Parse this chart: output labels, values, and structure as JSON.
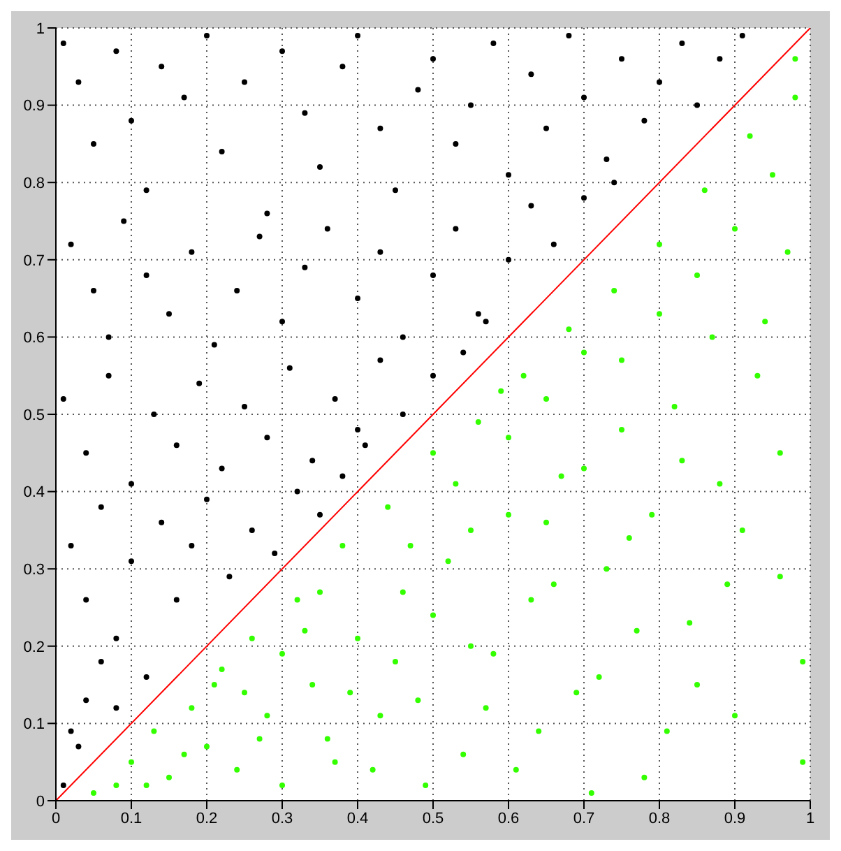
{
  "chart_data": {
    "type": "scatter",
    "xlim": [
      0,
      1
    ],
    "ylim": [
      0,
      1
    ],
    "xticks": [
      0,
      0.1,
      0.2,
      0.3,
      0.4,
      0.5,
      0.6,
      0.7,
      0.8,
      0.9,
      1
    ],
    "yticks": [
      0,
      0.1,
      0.2,
      0.3,
      0.4,
      0.5,
      0.6,
      0.7,
      0.8,
      0.9,
      1
    ],
    "grid": true,
    "marker": "circle",
    "series": [
      {
        "color": "#000000",
        "x": [
          0.01,
          0.03,
          0.05,
          0.08,
          0.1,
          0.12,
          0.14,
          0.17,
          0.2,
          0.22,
          0.25,
          0.28,
          0.3,
          0.33,
          0.35,
          0.38,
          0.4,
          0.43,
          0.45,
          0.48,
          0.5,
          0.53,
          0.55,
          0.58,
          0.6,
          0.63,
          0.65,
          0.68,
          0.7,
          0.73,
          0.75,
          0.78,
          0.8,
          0.83,
          0.85,
          0.88,
          0.91,
          0.02,
          0.05,
          0.07,
          0.09,
          0.12,
          0.15,
          0.18,
          0.21,
          0.24,
          0.27,
          0.3,
          0.33,
          0.36,
          0.4,
          0.43,
          0.46,
          0.5,
          0.53,
          0.56,
          0.6,
          0.63,
          0.66,
          0.7,
          0.74,
          0.01,
          0.04,
          0.07,
          0.1,
          0.13,
          0.16,
          0.19,
          0.22,
          0.25,
          0.28,
          0.31,
          0.34,
          0.37,
          0.4,
          0.43,
          0.46,
          0.5,
          0.54,
          0.57,
          0.02,
          0.04,
          0.06,
          0.08,
          0.1,
          0.12,
          0.14,
          0.16,
          0.18,
          0.2,
          0.23,
          0.26,
          0.29,
          0.32,
          0.35,
          0.02,
          0.04,
          0.06,
          0.03,
          0.08,
          0.01,
          0.38,
          0.41
        ],
        "values": [
          0.98,
          0.93,
          0.85,
          0.97,
          0.88,
          0.79,
          0.95,
          0.91,
          0.99,
          0.84,
          0.93,
          0.76,
          0.97,
          0.89,
          0.82,
          0.95,
          0.99,
          0.87,
          0.79,
          0.92,
          0.96,
          0.85,
          0.9,
          0.98,
          0.81,
          0.94,
          0.87,
          0.99,
          0.91,
          0.83,
          0.96,
          0.88,
          0.93,
          0.98,
          0.9,
          0.96,
          0.99,
          0.72,
          0.66,
          0.6,
          0.75,
          0.68,
          0.63,
          0.71,
          0.59,
          0.66,
          0.73,
          0.62,
          0.69,
          0.74,
          0.65,
          0.71,
          0.6,
          0.68,
          0.74,
          0.63,
          0.7,
          0.77,
          0.72,
          0.78,
          0.8,
          0.52,
          0.45,
          0.55,
          0.41,
          0.5,
          0.46,
          0.54,
          0.43,
          0.51,
          0.47,
          0.56,
          0.44,
          0.52,
          0.48,
          0.57,
          0.5,
          0.55,
          0.58,
          0.62,
          0.33,
          0.26,
          0.38,
          0.21,
          0.31,
          0.16,
          0.36,
          0.26,
          0.33,
          0.39,
          0.29,
          0.35,
          0.32,
          0.4,
          0.37,
          0.09,
          0.13,
          0.18,
          0.07,
          0.12,
          0.02,
          0.42,
          0.46
        ]
      },
      {
        "color": "#33ff00",
        "x": [
          0.05,
          0.08,
          0.1,
          0.13,
          0.15,
          0.18,
          0.2,
          0.22,
          0.24,
          0.26,
          0.28,
          0.3,
          0.32,
          0.34,
          0.36,
          0.38,
          0.4,
          0.42,
          0.44,
          0.46,
          0.48,
          0.5,
          0.52,
          0.54,
          0.56,
          0.58,
          0.6,
          0.62,
          0.64,
          0.66,
          0.68,
          0.7,
          0.72,
          0.74,
          0.76,
          0.78,
          0.8,
          0.82,
          0.84,
          0.86,
          0.88,
          0.9,
          0.92,
          0.94,
          0.96,
          0.98,
          0.99,
          0.25,
          0.3,
          0.35,
          0.45,
          0.5,
          0.55,
          0.6,
          0.65,
          0.7,
          0.75,
          0.8,
          0.85,
          0.9,
          0.95,
          0.97,
          0.93,
          0.87,
          0.83,
          0.77,
          0.73,
          0.67,
          0.63,
          0.57,
          0.53,
          0.47,
          0.43,
          0.37,
          0.33,
          0.27,
          0.21,
          0.17,
          0.12,
          0.61,
          0.69,
          0.79,
          0.89,
          0.99,
          0.96,
          0.91,
          0.81,
          0.71,
          0.59,
          0.49,
          0.39,
          0.85,
          0.75,
          0.65,
          0.55,
          0.98
        ],
        "values": [
          0.01,
          0.02,
          0.05,
          0.09,
          0.03,
          0.12,
          0.07,
          0.17,
          0.04,
          0.21,
          0.11,
          0.02,
          0.26,
          0.15,
          0.08,
          0.33,
          0.21,
          0.04,
          0.38,
          0.27,
          0.13,
          0.45,
          0.31,
          0.06,
          0.49,
          0.19,
          0.37,
          0.55,
          0.09,
          0.28,
          0.61,
          0.43,
          0.16,
          0.66,
          0.34,
          0.03,
          0.72,
          0.51,
          0.23,
          0.79,
          0.41,
          0.11,
          0.86,
          0.62,
          0.29,
          0.91,
          0.05,
          0.14,
          0.19,
          0.27,
          0.18,
          0.24,
          0.35,
          0.47,
          0.52,
          0.58,
          0.48,
          0.63,
          0.68,
          0.74,
          0.81,
          0.71,
          0.55,
          0.6,
          0.44,
          0.22,
          0.3,
          0.42,
          0.26,
          0.12,
          0.41,
          0.33,
          0.11,
          0.05,
          0.22,
          0.08,
          0.15,
          0.06,
          0.02,
          0.04,
          0.14,
          0.37,
          0.28,
          0.18,
          0.45,
          0.35,
          0.09,
          0.01,
          0.53,
          0.02,
          0.14,
          0.15,
          0.57,
          0.36,
          0.2,
          0.96
        ]
      },
      {
        "type": "line",
        "marker": "none",
        "color": "#ff0000",
        "x": [
          0,
          1
        ],
        "values": [
          0,
          1
        ]
      }
    ]
  }
}
